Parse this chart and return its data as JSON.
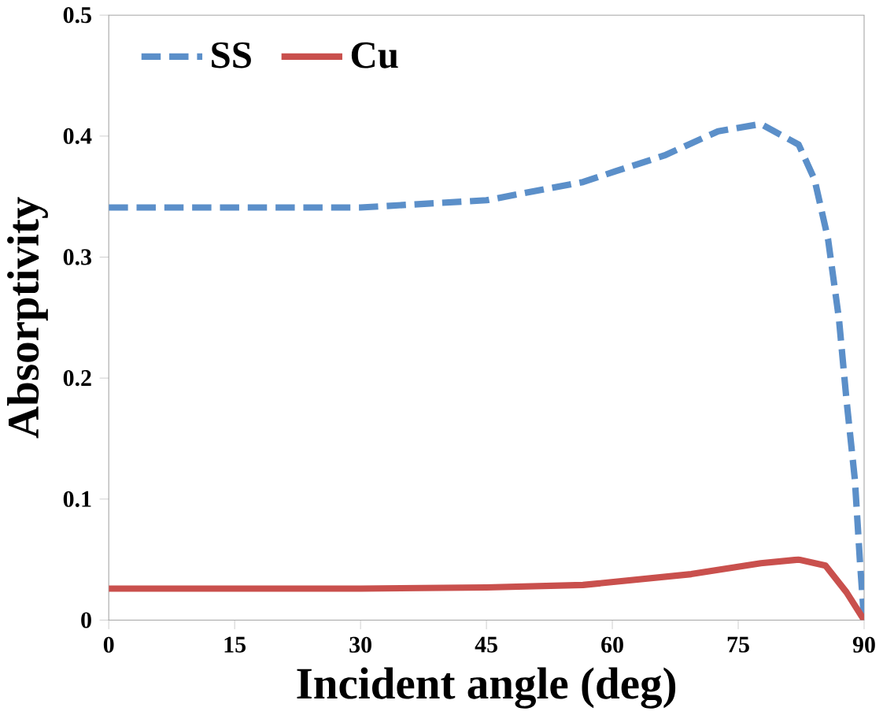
{
  "chart_data": {
    "type": "line",
    "xlabel": "Incident angle (deg)",
    "ylabel": "Absorptivity",
    "xlim": [
      0,
      90
    ],
    "xticks": [
      0,
      15,
      30,
      45,
      60,
      75,
      90
    ],
    "ylim": [
      0,
      0.5
    ],
    "yticks": [
      0,
      0.1,
      0.2,
      0.3,
      0.4,
      0.5
    ],
    "legend": "top left",
    "grid": false,
    "marker": "none",
    "series": [
      {
        "name": "SS",
        "color": "#5b8fc9",
        "line_style": "dashed",
        "x": [
          0,
          15,
          30,
          45,
          56.5,
          60.4,
          66.2,
          72.6,
          77.7,
          82.2,
          84.1,
          85.7,
          87.0,
          87.9,
          88.9,
          89.5,
          90
        ],
        "values": [
          0.341,
          0.341,
          0.341,
          0.347,
          0.362,
          0.371,
          0.384,
          0.404,
          0.41,
          0.393,
          0.364,
          0.315,
          0.249,
          0.182,
          0.116,
          0.049,
          0
        ]
      },
      {
        "name": "Cu",
        "color": "#c9504d",
        "line_style": "solid",
        "x": [
          0,
          15,
          30,
          45,
          56.5,
          69.4,
          77.7,
          82.2,
          85.4,
          87.9,
          90
        ],
        "values": [
          0.026,
          0.026,
          0.026,
          0.027,
          0.029,
          0.038,
          0.047,
          0.05,
          0.045,
          0.023,
          0
        ]
      }
    ]
  }
}
